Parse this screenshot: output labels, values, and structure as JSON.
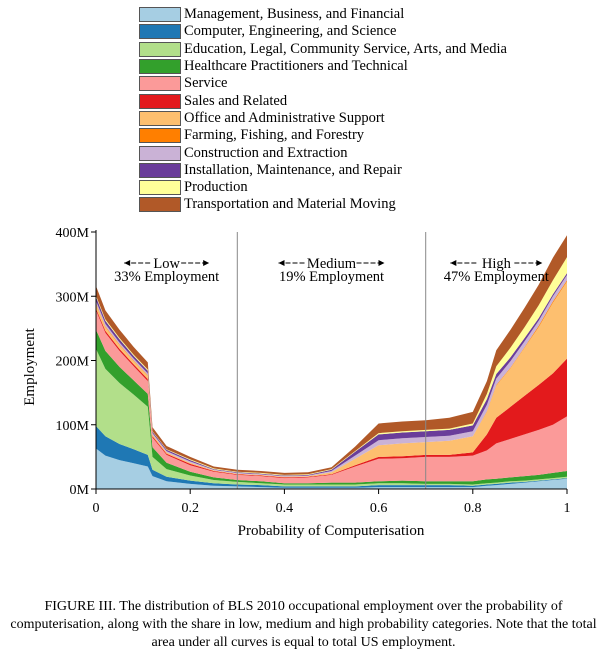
{
  "chart_data": {
    "type": "area",
    "stacked": true,
    "xlabel": "Probability of Computerisation",
    "ylabel": "Employment",
    "xlim": [
      0,
      1
    ],
    "ylim": [
      0,
      400000000
    ],
    "xticks": [
      0,
      0.2,
      0.4,
      0.6,
      0.8,
      1
    ],
    "xtick_labels": [
      "0",
      "0.2",
      "0.4",
      "0.6",
      "0.8",
      "1"
    ],
    "yticks": [
      0,
      100000000,
      200000000,
      300000000,
      400000000
    ],
    "ytick_labels": [
      "0M",
      "100M",
      "200M",
      "300M",
      "400M"
    ],
    "grid": false,
    "legend_position": "top",
    "x": [
      0,
      0.02,
      0.05,
      0.08,
      0.11,
      0.12,
      0.15,
      0.2,
      0.25,
      0.3,
      0.35,
      0.4,
      0.45,
      0.5,
      0.55,
      0.6,
      0.65,
      0.7,
      0.75,
      0.8,
      0.83,
      0.85,
      0.88,
      0.91,
      0.94,
      0.97,
      1.0
    ],
    "series": [
      {
        "name": "Management, Business, and Financial",
        "color": "#a6cee3",
        "values": [
          63,
          52,
          45,
          40,
          35,
          20,
          12,
          8,
          5,
          4,
          3,
          2,
          2,
          2,
          2,
          3,
          3,
          3,
          3,
          3,
          5,
          6,
          8,
          10,
          12,
          14,
          16
        ]
      },
      {
        "name": "Computer, Engineering, and Science",
        "color": "#1f78b4",
        "values": [
          35,
          30,
          25,
          22,
          18,
          10,
          7,
          5,
          4,
          3,
          3,
          2,
          2,
          2,
          2,
          3,
          3,
          3,
          3,
          2,
          2,
          2,
          2,
          1,
          1,
          1,
          1
        ]
      },
      {
        "name": "Education, Legal, Community Service, Arts, and Media",
        "color": "#b2df8a",
        "values": [
          120,
          105,
          95,
          85,
          75,
          20,
          12,
          8,
          5,
          4,
          3,
          3,
          3,
          3,
          3,
          3,
          3,
          2,
          2,
          2,
          2,
          2,
          2,
          2,
          2,
          2,
          2
        ]
      },
      {
        "name": "Healthcare Practitioners and Technical",
        "color": "#33a02c",
        "values": [
          30,
          28,
          25,
          22,
          20,
          15,
          10,
          6,
          4,
          3,
          3,
          2,
          2,
          3,
          3,
          3,
          4,
          4,
          4,
          5,
          6,
          6,
          6,
          7,
          7,
          8,
          9
        ]
      },
      {
        "name": "Service",
        "color": "#fb9a99",
        "values": [
          30,
          28,
          25,
          22,
          20,
          15,
          12,
          10,
          9,
          8,
          8,
          8,
          9,
          12,
          25,
          35,
          35,
          38,
          38,
          40,
          45,
          55,
          60,
          65,
          70,
          75,
          85
        ]
      },
      {
        "name": "Sales and Related",
        "color": "#e31a1c",
        "values": [
          3,
          3,
          3,
          3,
          3,
          2,
          2,
          2,
          1,
          1,
          1,
          1,
          1,
          1,
          2,
          3,
          3,
          3,
          3,
          5,
          25,
          40,
          50,
          60,
          70,
          80,
          90
        ]
      },
      {
        "name": "Office and Administrative Support",
        "color": "#fdbf6f",
        "values": [
          7,
          6,
          6,
          5,
          5,
          3,
          2,
          2,
          1,
          1,
          1,
          1,
          1,
          3,
          10,
          18,
          20,
          20,
          22,
          25,
          35,
          50,
          60,
          75,
          90,
          110,
          120
        ]
      },
      {
        "name": "Farming, Fishing, and Forestry",
        "color": "#ff7f00",
        "values": [
          1,
          1,
          1,
          1,
          1,
          0,
          0,
          0,
          0,
          0,
          0,
          0,
          0,
          0,
          0,
          0,
          0,
          0,
          0,
          0,
          1,
          1,
          1,
          1,
          2,
          2,
          2
        ]
      },
      {
        "name": "Construction and Extraction",
        "color": "#cab2d6",
        "values": [
          4,
          4,
          3,
          3,
          3,
          2,
          2,
          2,
          1,
          1,
          1,
          1,
          1,
          2,
          5,
          8,
          8,
          8,
          8,
          8,
          10,
          10,
          10,
          9,
          8,
          8,
          8
        ]
      },
      {
        "name": "Installation, Maintenance, and Repair",
        "color": "#6a3d9a",
        "values": [
          6,
          5,
          5,
          4,
          4,
          2,
          2,
          2,
          1,
          1,
          1,
          1,
          1,
          2,
          6,
          9,
          9,
          9,
          9,
          9,
          9,
          7,
          6,
          5,
          4,
          3,
          3
        ]
      },
      {
        "name": "Production",
        "color": "#ffff99",
        "values": [
          2,
          2,
          2,
          2,
          2,
          1,
          1,
          1,
          1,
          1,
          1,
          1,
          1,
          1,
          1,
          2,
          2,
          2,
          2,
          3,
          8,
          12,
          15,
          17,
          20,
          22,
          25
        ]
      },
      {
        "name": "Transportation and Material Moving",
        "color": "#b15928",
        "values": [
          15,
          14,
          13,
          12,
          11,
          6,
          5,
          4,
          3,
          3,
          3,
          3,
          3,
          3,
          7,
          15,
          15,
          15,
          17,
          18,
          20,
          25,
          28,
          30,
          32,
          35,
          34
        ]
      }
    ],
    "value_unit_multiplier": 1000000,
    "dividers": [
      0.3,
      0.7
    ],
    "annotations": [
      {
        "arrow_label": "Low",
        "share": "33% Employment",
        "x_center": 0.15
      },
      {
        "arrow_label": "Medium",
        "share": "19% Employment",
        "x_center": 0.5
      },
      {
        "arrow_label": "High",
        "share": "47% Employment",
        "x_center": 0.85
      }
    ]
  },
  "caption": "FIGURE III. The distribution of BLS 2010 occupational employment over the probability of computerisation, along with the share in low, medium and high probability categories. Note that the total area under all curves is equal to total US employment."
}
